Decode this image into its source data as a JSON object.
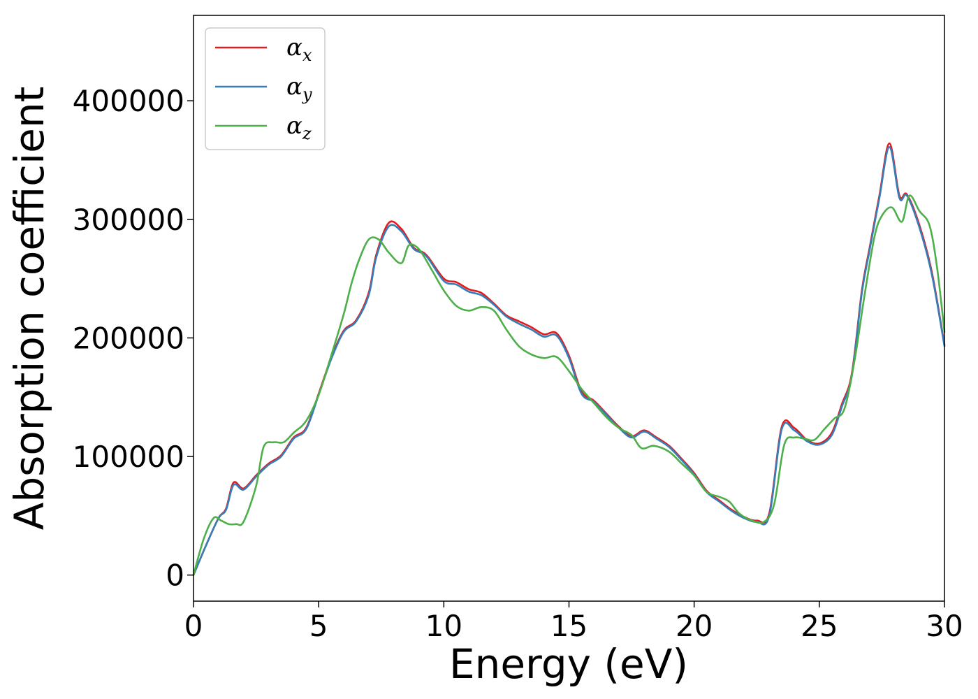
{
  "chart_data": {
    "type": "line",
    "title": "",
    "xlabel": "Energy (eV)",
    "ylabel": "Absorption coefficient",
    "xlim": [
      0,
      30
    ],
    "ylim": [
      -22000,
      472000
    ],
    "xticks": [
      "0",
      "5",
      "10",
      "15",
      "20",
      "25",
      "30"
    ],
    "yticks": [
      "0",
      "100000",
      "200000",
      "300000",
      "400000"
    ],
    "grid": false,
    "legend_position": "top-left",
    "series": [
      {
        "name": "α_x",
        "name_base": "α",
        "name_sub": "x",
        "color": "#e41a1c",
        "points": [
          [
            0,
            0
          ],
          [
            0.5,
            25000
          ],
          [
            1.0,
            48000
          ],
          [
            1.3,
            56000
          ],
          [
            1.6,
            78000
          ],
          [
            2.0,
            73000
          ],
          [
            2.5,
            84000
          ],
          [
            3.0,
            94000
          ],
          [
            3.5,
            101000
          ],
          [
            4.0,
            116000
          ],
          [
            4.5,
            124000
          ],
          [
            5.0,
            153000
          ],
          [
            5.5,
            183000
          ],
          [
            6.0,
            206000
          ],
          [
            6.5,
            215000
          ],
          [
            7.0,
            238000
          ],
          [
            7.3,
            270000
          ],
          [
            7.8,
            297000
          ],
          [
            8.3,
            292000
          ],
          [
            8.8,
            276000
          ],
          [
            9.3,
            270000
          ],
          [
            10.0,
            250000
          ],
          [
            10.5,
            247000
          ],
          [
            11.0,
            241000
          ],
          [
            11.5,
            238000
          ],
          [
            12.0,
            229000
          ],
          [
            12.5,
            219000
          ],
          [
            13.0,
            214000
          ],
          [
            13.5,
            209000
          ],
          [
            14.0,
            203000
          ],
          [
            14.5,
            204000
          ],
          [
            15.0,
            185000
          ],
          [
            15.5,
            155000
          ],
          [
            16.0,
            147000
          ],
          [
            16.5,
            136000
          ],
          [
            17.0,
            125000
          ],
          [
            17.5,
            117000
          ],
          [
            18.0,
            122000
          ],
          [
            18.5,
            116000
          ],
          [
            19.0,
            109000
          ],
          [
            19.5,
            98000
          ],
          [
            20.0,
            86000
          ],
          [
            20.5,
            71000
          ],
          [
            21.0,
            63000
          ],
          [
            21.5,
            55000
          ],
          [
            22.0,
            49000
          ],
          [
            22.5,
            46000
          ],
          [
            23.0,
            52000
          ],
          [
            23.5,
            125000
          ],
          [
            24.0,
            124000
          ],
          [
            24.5,
            114000
          ],
          [
            25.0,
            111000
          ],
          [
            25.5,
            120000
          ],
          [
            25.9,
            144000
          ],
          [
            26.3,
            170000
          ],
          [
            26.7,
            240000
          ],
          [
            27.0,
            275000
          ],
          [
            27.4,
            320000
          ],
          [
            27.8,
            364000
          ],
          [
            28.2,
            320000
          ],
          [
            28.5,
            321000
          ],
          [
            29.0,
            295000
          ],
          [
            29.5,
            255000
          ],
          [
            30.0,
            194000
          ]
        ]
      },
      {
        "name": "α_y",
        "name_base": "α",
        "name_sub": "y",
        "color": "#377eb8",
        "points": [
          [
            0,
            0
          ],
          [
            0.5,
            25000
          ],
          [
            1.0,
            48000
          ],
          [
            1.3,
            55000
          ],
          [
            1.6,
            76000
          ],
          [
            2.0,
            72000
          ],
          [
            2.5,
            83000
          ],
          [
            3.0,
            93000
          ],
          [
            3.5,
            100000
          ],
          [
            4.0,
            115000
          ],
          [
            4.5,
            123000
          ],
          [
            5.0,
            152000
          ],
          [
            5.5,
            182000
          ],
          [
            6.0,
            205000
          ],
          [
            6.5,
            214000
          ],
          [
            7.0,
            236000
          ],
          [
            7.3,
            268000
          ],
          [
            7.8,
            294000
          ],
          [
            8.3,
            290000
          ],
          [
            8.8,
            275000
          ],
          [
            9.3,
            269000
          ],
          [
            10.0,
            248000
          ],
          [
            10.5,
            245000
          ],
          [
            11.0,
            239000
          ],
          [
            11.5,
            236000
          ],
          [
            12.0,
            228000
          ],
          [
            12.5,
            218000
          ],
          [
            13.0,
            212000
          ],
          [
            13.5,
            207000
          ],
          [
            14.0,
            201000
          ],
          [
            14.5,
            202000
          ],
          [
            15.0,
            183000
          ],
          [
            15.5,
            153000
          ],
          [
            16.0,
            146000
          ],
          [
            16.5,
            135000
          ],
          [
            17.0,
            124000
          ],
          [
            17.5,
            116000
          ],
          [
            18.0,
            121000
          ],
          [
            18.5,
            115000
          ],
          [
            19.0,
            108000
          ],
          [
            19.5,
            97000
          ],
          [
            20.0,
            85000
          ],
          [
            20.5,
            70000
          ],
          [
            21.0,
            62000
          ],
          [
            21.5,
            54000
          ],
          [
            22.0,
            48000
          ],
          [
            22.5,
            45000
          ],
          [
            23.0,
            50000
          ],
          [
            23.5,
            123000
          ],
          [
            24.0,
            122000
          ],
          [
            24.5,
            113000
          ],
          [
            25.0,
            110000
          ],
          [
            25.5,
            118000
          ],
          [
            25.9,
            142000
          ],
          [
            26.3,
            168000
          ],
          [
            26.7,
            238000
          ],
          [
            27.0,
            273000
          ],
          [
            27.4,
            318000
          ],
          [
            27.8,
            361000
          ],
          [
            28.2,
            318000
          ],
          [
            28.5,
            320000
          ],
          [
            29.0,
            293000
          ],
          [
            29.5,
            253000
          ],
          [
            30.0,
            193000
          ]
        ]
      },
      {
        "name": "α_z",
        "name_base": "α",
        "name_sub": "z",
        "color": "#4daf4a",
        "points": [
          [
            0,
            0
          ],
          [
            0.4,
            30000
          ],
          [
            0.8,
            48000
          ],
          [
            1.1,
            46000
          ],
          [
            1.4,
            43000
          ],
          [
            1.7,
            43000
          ],
          [
            2.0,
            45000
          ],
          [
            2.5,
            75000
          ],
          [
            2.8,
            108000
          ],
          [
            3.2,
            112000
          ],
          [
            3.6,
            112000
          ],
          [
            4.0,
            120000
          ],
          [
            4.5,
            130000
          ],
          [
            5.0,
            152000
          ],
          [
            5.5,
            185000
          ],
          [
            6.0,
            220000
          ],
          [
            6.3,
            245000
          ],
          [
            6.6,
            265000
          ],
          [
            7.0,
            283000
          ],
          [
            7.4,
            283000
          ],
          [
            7.8,
            272000
          ],
          [
            8.3,
            263000
          ],
          [
            8.6,
            278000
          ],
          [
            9.0,
            275000
          ],
          [
            9.5,
            258000
          ],
          [
            10.0,
            240000
          ],
          [
            10.5,
            227000
          ],
          [
            11.0,
            223000
          ],
          [
            11.5,
            226000
          ],
          [
            12.0,
            223000
          ],
          [
            12.5,
            207000
          ],
          [
            13.0,
            193000
          ],
          [
            13.5,
            186000
          ],
          [
            14.0,
            183000
          ],
          [
            14.5,
            184000
          ],
          [
            15.0,
            172000
          ],
          [
            15.5,
            157000
          ],
          [
            16.0,
            145000
          ],
          [
            16.5,
            133000
          ],
          [
            17.0,
            124000
          ],
          [
            17.5,
            118000
          ],
          [
            17.9,
            107000
          ],
          [
            18.4,
            109000
          ],
          [
            19.0,
            104000
          ],
          [
            19.5,
            94000
          ],
          [
            20.0,
            84000
          ],
          [
            20.5,
            70000
          ],
          [
            21.0,
            66000
          ],
          [
            21.4,
            62000
          ],
          [
            21.8,
            52000
          ],
          [
            22.3,
            46000
          ],
          [
            22.8,
            45000
          ],
          [
            23.2,
            60000
          ],
          [
            23.6,
            110000
          ],
          [
            24.0,
            116000
          ],
          [
            24.4,
            115000
          ],
          [
            24.8,
            114000
          ],
          [
            25.2,
            123000
          ],
          [
            25.6,
            132000
          ],
          [
            26.0,
            140000
          ],
          [
            26.4,
            180000
          ],
          [
            26.8,
            235000
          ],
          [
            27.2,
            285000
          ],
          [
            27.5,
            303000
          ],
          [
            27.9,
            310000
          ],
          [
            28.3,
            298000
          ],
          [
            28.6,
            320000
          ],
          [
            29.0,
            307000
          ],
          [
            29.4,
            295000
          ],
          [
            29.7,
            260000
          ],
          [
            30.0,
            205000
          ]
        ]
      }
    ]
  }
}
